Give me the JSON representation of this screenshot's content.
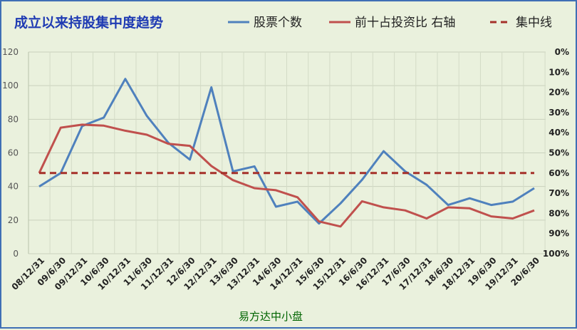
{
  "chart_data": {
    "type": "line",
    "title": "成立以来持股集中度趋势",
    "subtitle": "易方达中小盘",
    "categories": [
      "08/12/31",
      "09/6/30",
      "09/12/31",
      "10/6/30",
      "10/12/31",
      "11/6/30",
      "11/12/31",
      "12/6/30",
      "12/12/31",
      "13/6/30",
      "13/12/31",
      "14/6/30",
      "14/12/31",
      "15/6/30",
      "15/12/31",
      "16/6/30",
      "16/12/31",
      "17/6/30",
      "17/12/31",
      "18/6/30",
      "18/12/31",
      "19/6/30",
      "19/12/31",
      "20/6/30"
    ],
    "y_left": {
      "ylim": [
        0,
        120
      ],
      "ticks": [
        "0",
        "20",
        "40",
        "60",
        "80",
        "100",
        "120"
      ]
    },
    "y_right": {
      "ylim": [
        1.0,
        0.0
      ],
      "ticks": [
        "0%",
        "10%",
        "20%",
        "30%",
        "40%",
        "50%",
        "60%",
        "70%",
        "80%",
        "90%",
        "100%"
      ],
      "reversed": true
    },
    "series": [
      {
        "name": "股票个数",
        "axis": "left",
        "color": "#4f81bd",
        "style": "solid",
        "values": [
          40,
          48,
          76,
          81,
          104,
          82,
          66,
          56,
          99,
          49,
          52,
          28,
          31,
          18,
          30,
          44,
          61,
          49,
          41,
          29,
          33,
          29,
          31,
          39
        ]
      },
      {
        "name": "前十占投资比 右轴",
        "axis": "right",
        "color": "#c0504d",
        "style": "solid",
        "values": [
          0.6,
          0.375,
          0.36,
          0.365,
          0.39,
          0.41,
          0.455,
          0.465,
          0.565,
          0.635,
          0.675,
          0.685,
          0.72,
          0.84,
          0.865,
          0.74,
          0.77,
          0.785,
          0.825,
          0.77,
          0.775,
          0.815,
          0.825,
          0.785
        ]
      },
      {
        "name": "集中线",
        "axis": "right",
        "color": "#a5312a",
        "style": "dashed",
        "values": [
          0.6,
          0.6,
          0.6,
          0.6,
          0.6,
          0.6,
          0.6,
          0.6,
          0.6,
          0.6,
          0.6,
          0.6,
          0.6,
          0.6,
          0.6,
          0.6,
          0.6,
          0.6,
          0.6,
          0.6,
          0.6,
          0.6,
          0.6,
          0.6
        ]
      }
    ],
    "grid": true,
    "legend": "top"
  }
}
